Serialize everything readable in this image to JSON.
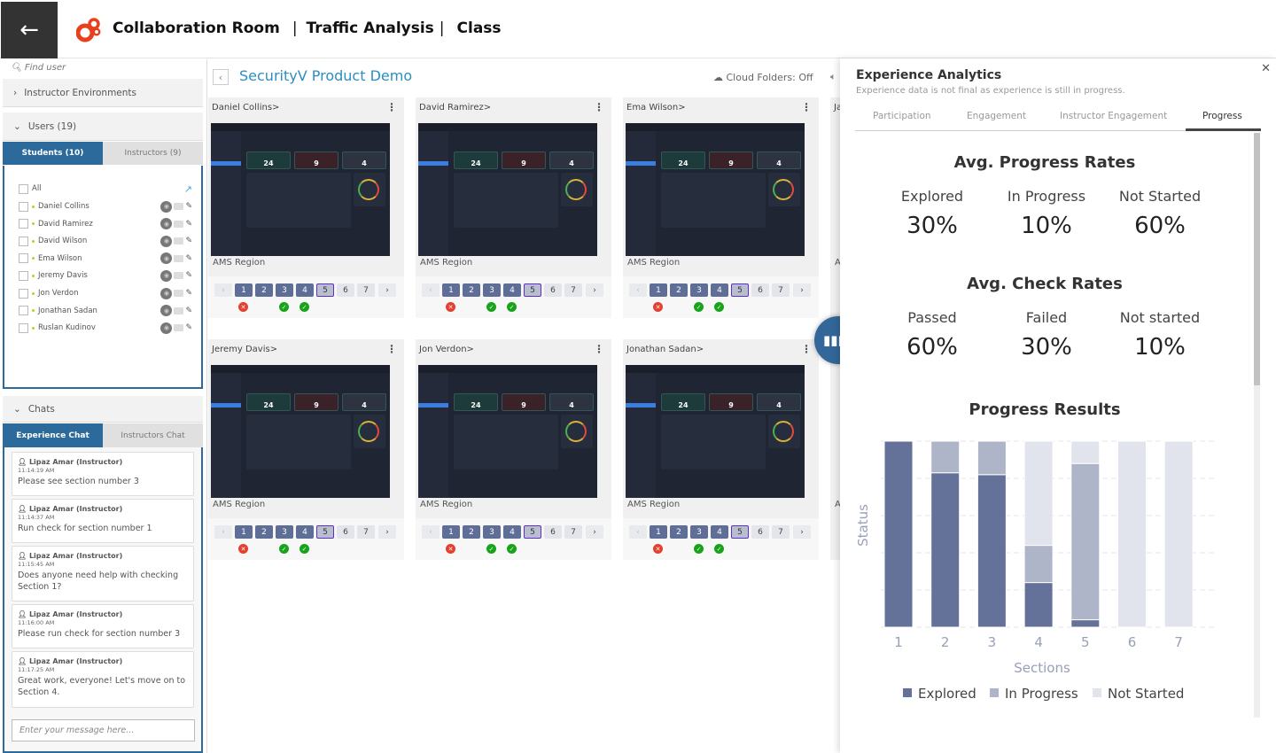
{
  "header": {
    "back_icon": "arrow-left-icon",
    "crumbs": [
      "Collaboration Room",
      "Traffic Analysis",
      "Class"
    ],
    "logo_color": "#e8401c"
  },
  "sidebar": {
    "search_placeholder": "Find user",
    "instructor_envs": "Instructor Environments",
    "users_label": "Users (19)",
    "tabs": [
      "Students (10)",
      "Instructors (9)"
    ],
    "all_label": "All",
    "students": [
      "Daniel Collins",
      "David Ramirez",
      "David Wilson",
      "Ema Wilson",
      "Jeremy Davis",
      "Jon Verdon",
      "Jonathan Sadan",
      "Ruslan Kudinov"
    ],
    "chats_label": "Chats",
    "chat_tabs": [
      "Experience Chat",
      "Instructors Chat"
    ],
    "messages": [
      {
        "who": "Lipaz Amar (Instructor)",
        "time": "11:14:19 AM",
        "text": "Please see section number 3"
      },
      {
        "who": "Lipaz Amar (Instructor)",
        "time": "11:14:37 AM",
        "text": "Run check for section number 1"
      },
      {
        "who": "Lipaz Amar (Instructor)",
        "time": "11:15:45 AM",
        "text": "Does anyone need help with checking Section 1?"
      },
      {
        "who": "Lipaz Amar (Instructor)",
        "time": "11:16:00 AM",
        "text": "Please run check for section number 3"
      },
      {
        "who": "Lipaz Amar (Instructor)",
        "time": "11:17:25 AM",
        "text": "Great work, everyone! Let's move on to Section 4."
      }
    ],
    "chat_placeholder": "Enter your message here..."
  },
  "main": {
    "title": "SecurityV Product Demo",
    "cloud": "Cloud Folders: Off",
    "cards": [
      {
        "name": "Daniel Collins>",
        "region": "AMS Region"
      },
      {
        "name": "David Ramirez>",
        "region": "AMS Region"
      },
      {
        "name": "Ema Wilson>",
        "region": "AMS Region"
      },
      {
        "name": "Ja",
        "region": "A"
      },
      {
        "name": "Jeremy Davis>",
        "region": "AMS Region"
      },
      {
        "name": "Jon Verdon>",
        "region": "AMS Region"
      },
      {
        "name": "Jonathan Sadan>",
        "region": "AMS Region"
      },
      {
        "name": "",
        "region": "A"
      }
    ],
    "thumb_stats": [
      "24",
      "9",
      "4"
    ],
    "pages": [
      "1",
      "2",
      "3",
      "4",
      "5",
      "6",
      "7"
    ],
    "current_page": "5",
    "page_status": {
      "1": "fail",
      "3": "pass",
      "4": "pass"
    }
  },
  "panel": {
    "title": "Experience Analytics",
    "subtitle": "Experience data is not final as experience is still in progress.",
    "tabs": [
      "Participation",
      "Engagement",
      "Instructor Engagement",
      "Progress"
    ],
    "active_tab": "Progress",
    "progress_title": "Avg. Progress Rates",
    "progress": [
      {
        "label": "Explored",
        "value": "30%"
      },
      {
        "label": "In Progress",
        "value": "10%"
      },
      {
        "label": "Not Started",
        "value": "60%"
      }
    ],
    "check_title": "Avg. Check Rates",
    "checks": [
      {
        "label": "Passed",
        "value": "60%"
      },
      {
        "label": "Failed",
        "value": "30%"
      },
      {
        "label": "Not started",
        "value": "10%"
      }
    ],
    "results_title": "Progress Results"
  },
  "chart_data": {
    "type": "bar",
    "stacked": true,
    "categories": [
      "1",
      "2",
      "3",
      "4",
      "5",
      "6",
      "7"
    ],
    "xlabel": "Sections",
    "ylabel": "Status",
    "ylim": [
      0,
      100
    ],
    "grid": true,
    "legend": "bottom",
    "series": [
      {
        "name": "Explored",
        "color": "#64729a",
        "values": [
          100,
          83,
          82,
          24,
          4,
          0,
          0
        ]
      },
      {
        "name": "In Progress",
        "color": "#afb5c9",
        "values": [
          0,
          17,
          18,
          20,
          84,
          0,
          0
        ]
      },
      {
        "name": "Not Started",
        "color": "#e1e4ec",
        "values": [
          0,
          0,
          0,
          56,
          12,
          100,
          100
        ]
      }
    ]
  }
}
